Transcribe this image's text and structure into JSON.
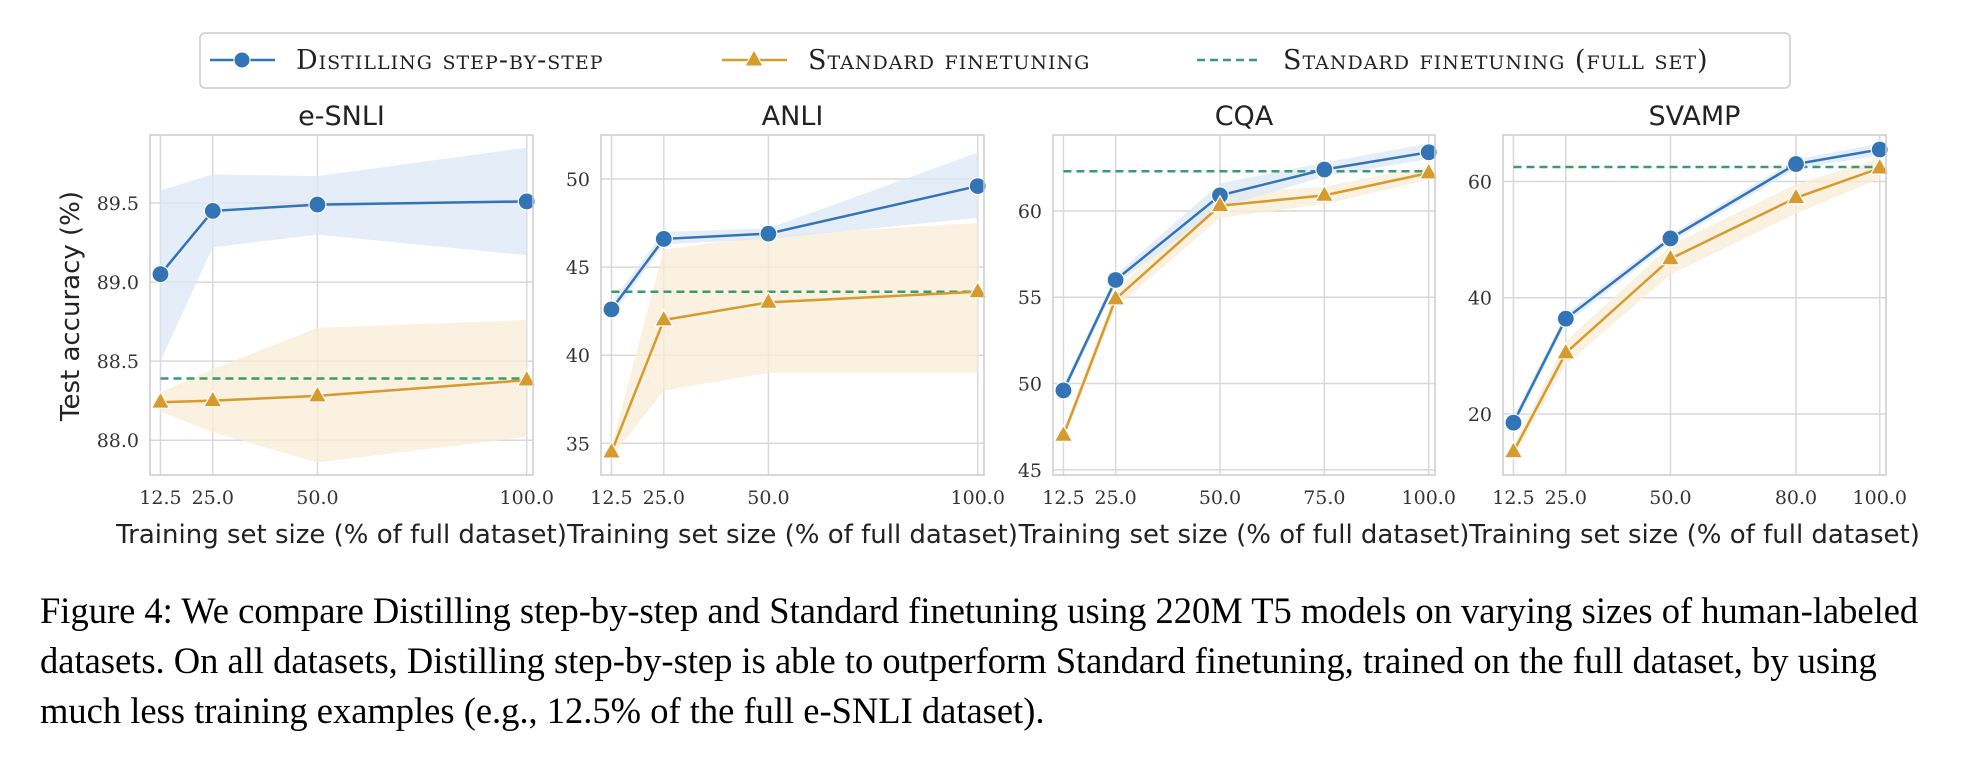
{
  "legend": {
    "distill": "Distilling step-by-step",
    "standard": "Standard finetuning",
    "full": "Standard finetuning (full set)"
  },
  "colors": {
    "distill": "#3274b5",
    "standard": "#d69a2d",
    "full": "#3a9a72",
    "distill_band": "#dbe7f5",
    "standard_band": "#f8ecd6"
  },
  "y_axis_label": "Test accuracy (%)",
  "x_axis_label": "Training set size (% of full dataset)",
  "caption": "Figure 4: We compare Distilling step-by-step and Standard finetuning using 220M T5 models on varying sizes of human-labeled datasets. On all datasets, Distilling step-by-step is able to outperform Standard finetuning, trained on the full dataset, by using much less training examples (e.g., 12.5% of the full e-SNLI dataset).",
  "chart_data": [
    {
      "type": "line",
      "title": "e-SNLI",
      "xlabel": "Training set size (% of full dataset)",
      "ylabel": "Test accuracy (%)",
      "x": [
        12.5,
        25.0,
        50.0,
        100.0
      ],
      "x_tick_labels": [
        "12.5",
        "25.0",
        "50.0",
        "100.0"
      ],
      "xlim": [
        10,
        101.5
      ],
      "ylim": [
        87.78,
        89.93
      ],
      "y_ticks": [
        88.0,
        88.5,
        89.0,
        89.5
      ],
      "y_tick_labels": [
        "88.0",
        "88.5",
        "89.0",
        "89.5"
      ],
      "series": [
        {
          "name": "Distilling step-by-step",
          "values": [
            89.05,
            89.45,
            89.49,
            89.51
          ],
          "band_low": [
            88.5,
            89.22,
            89.3,
            89.17
          ],
          "band_high": [
            89.58,
            89.68,
            89.67,
            89.85
          ]
        },
        {
          "name": "Standard finetuning",
          "values": [
            88.24,
            88.25,
            88.28,
            88.38
          ],
          "band_low": [
            88.18,
            88.05,
            87.86,
            88.02
          ],
          "band_high": [
            88.3,
            88.45,
            88.71,
            88.76
          ]
        }
      ],
      "reference_line": {
        "name": "Standard finetuning (full set)",
        "value": 88.39
      }
    },
    {
      "type": "line",
      "title": "ANLI",
      "xlabel": "Training set size (% of full dataset)",
      "ylabel": "",
      "x": [
        12.5,
        25.0,
        50.0,
        100.0
      ],
      "x_tick_labels": [
        "12.5",
        "25.0",
        "50.0",
        "100.0"
      ],
      "xlim": [
        10,
        101.5
      ],
      "ylim": [
        33.2,
        52.5
      ],
      "y_ticks": [
        35,
        40,
        45,
        50
      ],
      "y_tick_labels": [
        "35",
        "40",
        "45",
        "50"
      ],
      "series": [
        {
          "name": "Distilling step-by-step",
          "values": [
            42.6,
            46.6,
            46.9,
            49.6
          ],
          "band_low": [
            42.2,
            46.3,
            46.6,
            47.8
          ],
          "band_high": [
            43.0,
            47.0,
            47.2,
            51.5
          ]
        },
        {
          "name": "Standard finetuning",
          "values": [
            34.5,
            42.0,
            43.0,
            43.6
          ],
          "band_low": [
            34.2,
            38.0,
            39.0,
            39.0
          ],
          "band_high": [
            34.8,
            46.0,
            46.8,
            47.5
          ]
        }
      ],
      "reference_line": {
        "name": "Standard finetuning (full set)",
        "value": 43.6
      }
    },
    {
      "type": "line",
      "title": "CQA",
      "xlabel": "Training set size (% of full dataset)",
      "ylabel": "",
      "x": [
        12.5,
        25.0,
        50.0,
        75.0,
        100.0
      ],
      "x_tick_labels": [
        "12.5",
        "25.0",
        "50.0",
        "75.0",
        "100.0"
      ],
      "xlim": [
        10,
        101.5
      ],
      "ylim": [
        44.7,
        64.4
      ],
      "y_ticks": [
        45,
        50,
        55,
        60
      ],
      "y_tick_labels": [
        "45",
        "50",
        "55",
        "60"
      ],
      "series": [
        {
          "name": "Distilling step-by-step",
          "values": [
            49.6,
            56.0,
            60.9,
            62.4,
            63.4
          ],
          "band_low": [
            49.3,
            55.7,
            60.2,
            62.0,
            63.0
          ],
          "band_high": [
            49.9,
            56.3,
            61.6,
            62.8,
            63.9
          ]
        },
        {
          "name": "Standard finetuning",
          "values": [
            47.0,
            54.9,
            60.3,
            60.9,
            62.2
          ],
          "band_low": [
            46.7,
            54.4,
            59.6,
            60.4,
            61.8
          ],
          "band_high": [
            47.3,
            55.4,
            61.0,
            61.4,
            62.6
          ]
        }
      ],
      "reference_line": {
        "name": "Standard finetuning (full set)",
        "value": 62.3
      }
    },
    {
      "type": "line",
      "title": "SVAMP",
      "xlabel": "Training set size (% of full dataset)",
      "ylabel": "",
      "x": [
        12.5,
        25.0,
        50.0,
        80.0,
        100.0
      ],
      "x_tick_labels": [
        "12.5",
        "25.0",
        "50.0",
        "80.0",
        "100.0"
      ],
      "xlim": [
        10,
        101.5
      ],
      "ylim": [
        9.5,
        68.0
      ],
      "y_ticks": [
        20,
        40,
        60
      ],
      "y_tick_labels": [
        "20",
        "40",
        "60"
      ],
      "series": [
        {
          "name": "Distilling step-by-step",
          "values": [
            18.5,
            36.4,
            50.2,
            63.0,
            65.5
          ],
          "band_low": [
            17.5,
            35.5,
            49.5,
            62.2,
            64.5
          ],
          "band_high": [
            19.5,
            37.3,
            50.9,
            63.8,
            66.5
          ]
        },
        {
          "name": "Standard finetuning",
          "values": [
            13.5,
            30.5,
            46.7,
            57.2,
            62.3
          ],
          "band_low": [
            12.5,
            28.5,
            44.0,
            54.5,
            60.5
          ],
          "band_high": [
            14.5,
            32.5,
            49.0,
            59.5,
            64.0
          ]
        }
      ],
      "reference_line": {
        "name": "Standard finetuning (full set)",
        "value": 62.5
      }
    }
  ]
}
